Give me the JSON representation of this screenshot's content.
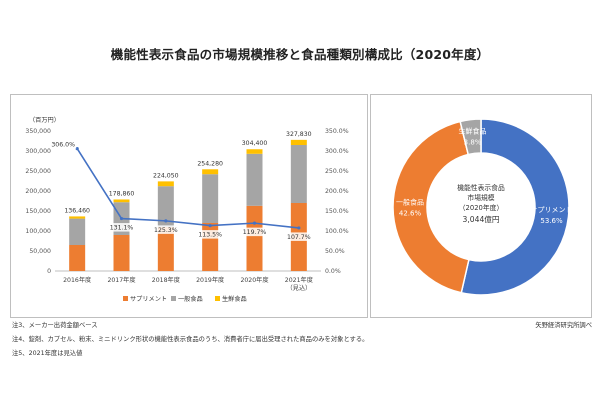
{
  "title": "機能性表示食品の市場規模推移と食品種類別構成比（2020年度）",
  "colors": {
    "supplement": "#ED7D31",
    "general": "#A5A5A5",
    "fresh": "#FFC000",
    "line": "#4472C4"
  },
  "chart_data": [
    {
      "type": "bar",
      "stacked": true,
      "unit_label": "（百万円）",
      "categories": [
        "2016年度",
        "2017年度",
        "2018年度",
        "2019年度",
        "2020年度",
        "2021年度"
      ],
      "category_sublabels": [
        "",
        "",
        "",
        "",
        "",
        "（見込）"
      ],
      "series": [
        {
          "name": "サプリメント",
          "values": [
            65000,
            90000,
            110000,
            120000,
            163000,
            170000
          ]
        },
        {
          "name": "一般食品",
          "values": [
            66000,
            82000,
            102000,
            122000,
            130000,
            145000
          ]
        },
        {
          "name": "生鮮食品",
          "values": [
            5460,
            6860,
            12050,
            12280,
            11400,
            12830
          ]
        }
      ],
      "totals": [
        "136,460",
        "178,860",
        "224,050",
        "254,280",
        "304,400",
        "327,830"
      ],
      "total_values": [
        136460,
        178860,
        224050,
        254280,
        304400,
        327830
      ],
      "ylim": [
        0,
        350000
      ],
      "yticks": [
        0,
        50000,
        100000,
        150000,
        200000,
        250000,
        300000,
        350000
      ],
      "ytick_labels": [
        "0",
        "50,000",
        "100,000",
        "150,000",
        "200,000",
        "250,000",
        "300,000",
        "350,000"
      ],
      "line": {
        "values": [
          306.0,
          131.1,
          125.3,
          113.5,
          119.7,
          107.7
        ],
        "labels": [
          "306.0%",
          "131.1%",
          "125.3%",
          "113.5%",
          "119.7%",
          "107.7%"
        ]
      },
      "y2lim": [
        0,
        350
      ],
      "y2ticks": [
        0,
        50,
        100,
        150,
        200,
        250,
        300,
        350
      ],
      "y2tick_labels": [
        "0.0%",
        "50.0%",
        "100.0%",
        "150.0%",
        "200.0%",
        "250.0%",
        "300.0%",
        "350.0%"
      ],
      "legend": [
        "サプリメント",
        "一般食品",
        "生鮮食品"
      ],
      "legend_position": "bottom",
      "grid": false
    },
    {
      "type": "pie",
      "donut": true,
      "labels": [
        "サプリメント",
        "一般食品",
        "生鮮食品"
      ],
      "values": [
        53.6,
        42.6,
        3.8
      ],
      "value_labels": [
        "53.6%",
        "42.6%",
        "3.8%"
      ],
      "center_text": [
        "機能性表示食品",
        "市場規模",
        "（2020年度）",
        "3,044億円"
      ]
    }
  ],
  "notes": [
    "注3、メーカー出荷金額ベース",
    "注4、錠剤、カプセル、粉末、ミニドリンク形状の機能性表示食品のうち、消費者庁に届出受理された商品のみを対象とする。",
    "注5、2021年度は見込値"
  ],
  "source": "矢野経済研究所調べ"
}
